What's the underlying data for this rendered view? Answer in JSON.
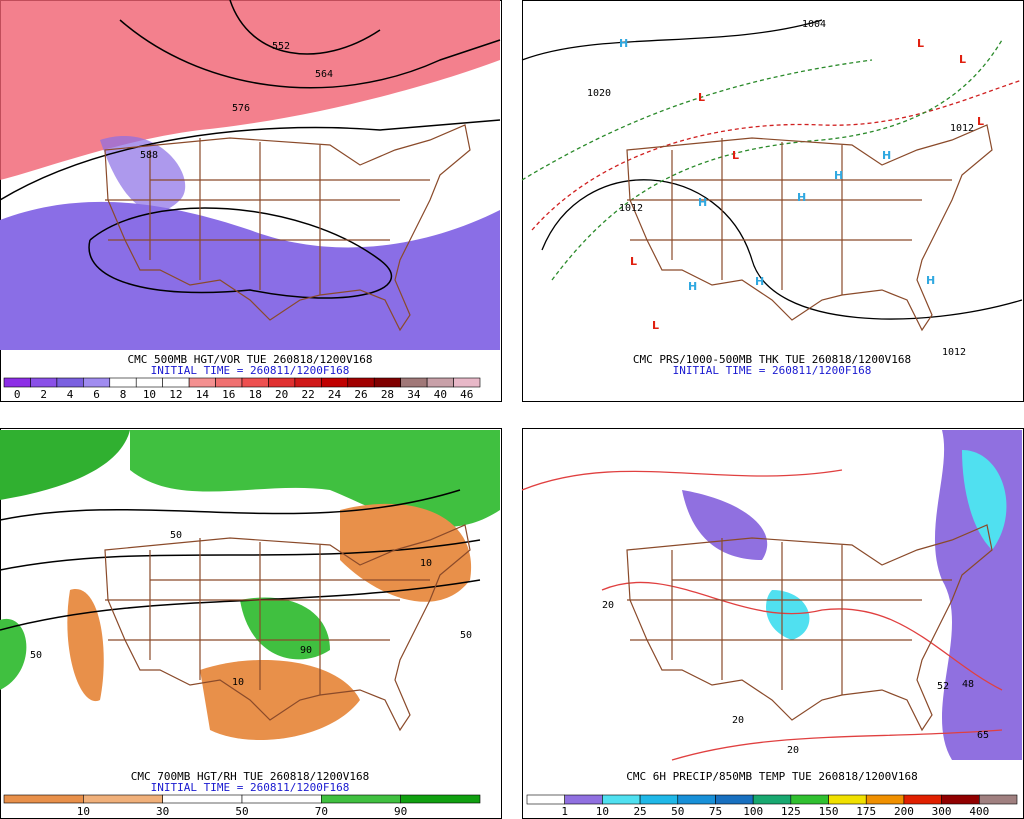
{
  "panels": [
    {
      "caption": "CMC 500MB HGT/VOR TUE 260818/1200V168",
      "initial": "INITIAL TIME = 260811/1200F168",
      "colorbar": {
        "labels": [
          "0",
          "2",
          "4",
          "6",
          "8",
          "10",
          "12",
          "14",
          "16",
          "18",
          "20",
          "22",
          "24",
          "26",
          "28",
          "34",
          "40",
          "46"
        ],
        "colors": [
          "#8c2ee6",
          "#8a50e8",
          "#7a60e0",
          "#a08cf0",
          "#ffffff",
          "#ffffff",
          "#ffffff",
          "#f49090",
          "#f07070",
          "#ee5050",
          "#e03030",
          "#d01818",
          "#c00000",
          "#a00000",
          "#800000",
          "#a07878",
          "#c8a0a8",
          "#e8b8c8"
        ]
      },
      "map_labels": [
        "552",
        "564",
        "576",
        "588"
      ]
    },
    {
      "caption": "CMC PRS/1000-500MB THK TUE 260818/1200V168",
      "initial": "INITIAL TIME = 260811/1200F168",
      "map_labels": [
        "H",
        "H",
        "H",
        "H",
        "H",
        "H",
        "H",
        "H",
        "L",
        "L",
        "L",
        "L",
        "L",
        "L",
        "L",
        "1004",
        "1020",
        "1012",
        "1012",
        "1012"
      ]
    },
    {
      "caption": "CMC 700MB HGT/RH TUE 260818/1200V168",
      "initial": "INITIAL TIME = 260811/1200F168",
      "colorbar": {
        "labels": [
          "10",
          "30",
          "50",
          "70",
          "90"
        ],
        "colors": [
          "#e8904a",
          "#f0b07a",
          "#ffffff",
          "#ffffff",
          "#40c040",
          "#10a010"
        ]
      },
      "map_labels": [
        "50",
        "50",
        "10",
        "90",
        "50",
        "10"
      ]
    },
    {
      "caption": "CMC 6H PRECIP/850MB TEMP TUE 260818/1200V168",
      "colorbar": {
        "labels": [
          "1",
          "10",
          "25",
          "50",
          "75",
          "100",
          "125",
          "150",
          "175",
          "200",
          "300",
          "400"
        ],
        "colors": [
          "#ffffff",
          "#9070e0",
          "#50e0f0",
          "#20b8e8",
          "#1890d8",
          "#1870c0",
          "#18a870",
          "#30c030",
          "#f0e000",
          "#f09000",
          "#e02000",
          "#900000",
          "#a08080"
        ]
      },
      "map_labels": [
        "20",
        "20",
        "20",
        "52",
        "48",
        "65"
      ]
    }
  ]
}
